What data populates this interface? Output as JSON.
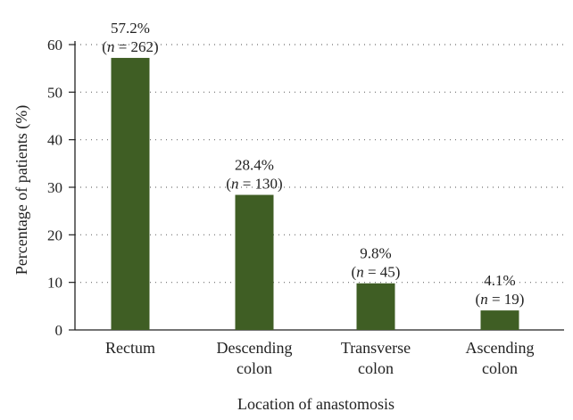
{
  "chart_data": {
    "type": "bar",
    "title": "",
    "xlabel": "Location of anastomosis",
    "ylabel": "Percentage of patients (%)",
    "ylim": [
      0,
      60
    ],
    "yticks": [
      "0",
      "10",
      "20",
      "30",
      "40",
      "50",
      "60"
    ],
    "grid": "horizontal dotted",
    "categories": [
      [
        "Rectum"
      ],
      [
        "Descending",
        "colon"
      ],
      [
        "Transverse",
        "colon"
      ],
      [
        "Ascending",
        "colon"
      ]
    ],
    "values": [
      57.2,
      28.4,
      9.8,
      4.1
    ],
    "percent_labels": [
      "57.2%",
      "28.4%",
      "9.8%",
      "4.1%"
    ],
    "n_values": [
      "262",
      "130",
      "45",
      "19"
    ],
    "n_symbol": "n",
    "n_equals": " = ",
    "bar_color": "#3f5e24"
  }
}
